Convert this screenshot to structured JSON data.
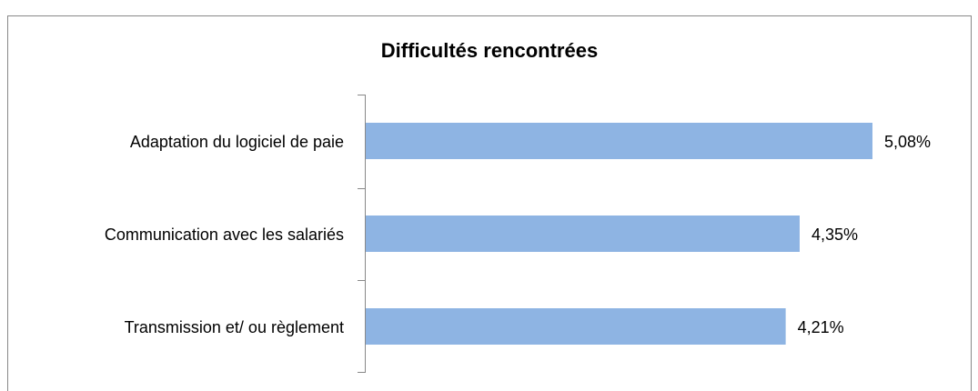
{
  "chart_data": {
    "type": "bar",
    "orientation": "horizontal",
    "title": "Difficultés rencontrées",
    "categories": [
      "Adaptation du logiciel de paie",
      "Communication avec les salariés",
      "Transmission et/ ou règlement"
    ],
    "values": [
      5.08,
      4.35,
      4.21
    ],
    "value_labels": [
      "5,08%",
      "4,35%",
      "4,21%"
    ],
    "color": "#8eb4e3"
  }
}
